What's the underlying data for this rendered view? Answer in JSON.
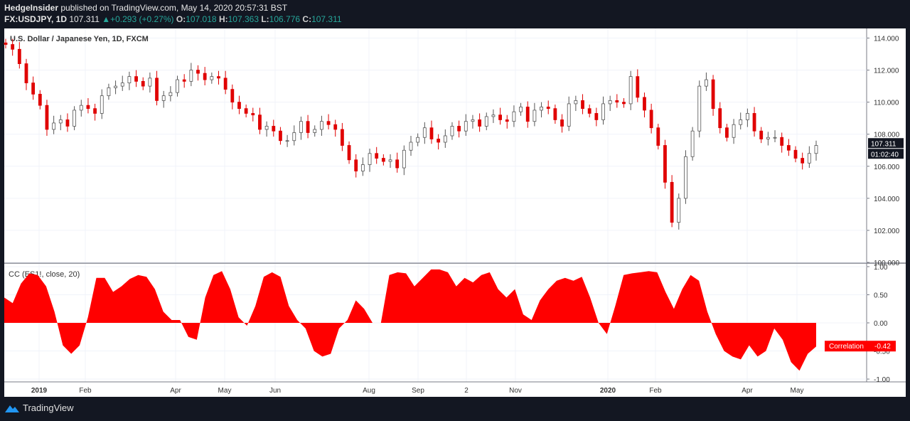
{
  "header": {
    "author": "HedgeInsider",
    "published": "published on TradingView.com, May 14, 2020 20:57:31 BST",
    "symbol": "FX:USDJPY, 1D",
    "last": "107.311",
    "change": "+0.293 (+0.27%)",
    "open_label": "O:",
    "open": "107.018",
    "high_label": "H:",
    "high": "107.363",
    "low_label": "L:",
    "low": "106.776",
    "close_label": "C:",
    "close": "107.311"
  },
  "footer": {
    "brand": "TradingView"
  },
  "colors": {
    "background": "#131722",
    "panel": "#ffffff",
    "bull": "#ffffff",
    "bear": "#e00000",
    "fill": "#ff0000"
  },
  "chart_data": [
    {
      "type": "candlestick",
      "title": "U.S. Dollar / Japanese Yen, 1D, FXCM",
      "ylim": [
        100,
        114.6
      ],
      "yticks": [
        100,
        102,
        104,
        106,
        108,
        110,
        112,
        114
      ],
      "ytick_labels": [
        "100.000",
        "102.000",
        "104.000",
        "106.000",
        "108.000",
        "110.000",
        "112.000",
        "114.000"
      ],
      "last_price_label": "107.311",
      "countdown_label": "01:02:40",
      "x_labels": [
        "2019",
        "Feb",
        "Apr",
        "May",
        "Jun",
        "Aug",
        "Sep",
        "2",
        "Nov",
        "2020",
        "Feb",
        "Apr",
        "May"
      ],
      "closes": [
        113.6,
        113.3,
        112.4,
        111.2,
        110.5,
        109.8,
        108.3,
        108.7,
        108.9,
        108.5,
        109.5,
        109.8,
        109.6,
        109.3,
        110.4,
        110.9,
        111.0,
        111.2,
        111.6,
        111.3,
        111.0,
        111.5,
        110.1,
        110.4,
        110.6,
        111.4,
        111.3,
        112.0,
        111.8,
        111.4,
        111.6,
        111.5,
        110.8,
        110.0,
        109.6,
        109.3,
        109.2,
        108.3,
        108.5,
        108.2,
        107.6,
        107.6,
        108.1,
        108.8,
        108.1,
        108.3,
        108.8,
        108.6,
        108.3,
        107.3,
        106.4,
        105.7,
        106.1,
        106.8,
        106.5,
        106.3,
        106.4,
        105.9,
        107.0,
        107.5,
        107.8,
        108.4,
        107.7,
        107.5,
        107.9,
        108.5,
        108.2,
        108.8,
        108.9,
        108.5,
        109.1,
        109.2,
        108.9,
        108.8,
        109.4,
        109.7,
        108.8,
        109.5,
        109.7,
        109.6,
        108.9,
        108.5,
        109.9,
        110.1,
        109.6,
        109.3,
        108.9,
        109.9,
        110.1,
        110.0,
        109.9,
        111.6,
        110.3,
        109.5,
        108.4,
        107.3,
        105.0,
        102.5,
        104.0,
        106.6,
        108.2,
        111.0,
        111.4,
        109.6,
        108.4,
        107.8,
        108.6,
        108.9,
        109.3,
        108.2,
        107.7,
        107.8,
        107.8,
        107.3,
        107.0,
        106.5,
        106.2,
        106.8,
        107.3
      ]
    },
    {
      "type": "area",
      "title": "CC (ES1!, close, 20)",
      "ylim": [
        -1.05,
        1.05
      ],
      "yticks": [
        -1,
        -0.5,
        0,
        0.5,
        1
      ],
      "ytick_labels": [
        "-1.00",
        "-0.50",
        "0.00",
        "0.50",
        "1.00"
      ],
      "series": [
        {
          "name": "Correlation",
          "last_value_label": "-0.42"
        }
      ],
      "values": [
        0.45,
        0.35,
        0.7,
        0.88,
        0.85,
        0.65,
        0.2,
        -0.4,
        -0.55,
        -0.4,
        0.1,
        0.8,
        0.8,
        0.55,
        0.65,
        0.78,
        0.85,
        0.82,
        0.6,
        0.2,
        0.05,
        0.05,
        -0.25,
        -0.3,
        0.45,
        0.85,
        0.92,
        0.6,
        0.1,
        -0.05,
        0.3,
        0.82,
        0.9,
        0.82,
        0.3,
        0.05,
        -0.1,
        -0.5,
        -0.6,
        -0.55,
        -0.1,
        0.05,
        0.4,
        0.25,
        0.0,
        0.0,
        0.85,
        0.9,
        0.88,
        0.65,
        0.8,
        0.95,
        0.95,
        0.9,
        0.65,
        0.8,
        0.72,
        0.85,
        0.9,
        0.6,
        0.45,
        0.6,
        0.15,
        0.05,
        0.4,
        0.6,
        0.75,
        0.8,
        0.75,
        0.82,
        0.45,
        0.0,
        -0.2,
        0.3,
        0.85,
        0.88,
        0.9,
        0.92,
        0.9,
        0.55,
        0.25,
        0.6,
        0.85,
        0.75,
        0.2,
        -0.2,
        -0.5,
        -0.6,
        -0.65,
        -0.4,
        -0.6,
        -0.5,
        -0.1,
        -0.3,
        -0.7,
        -0.85,
        -0.55,
        -0.42
      ]
    }
  ]
}
